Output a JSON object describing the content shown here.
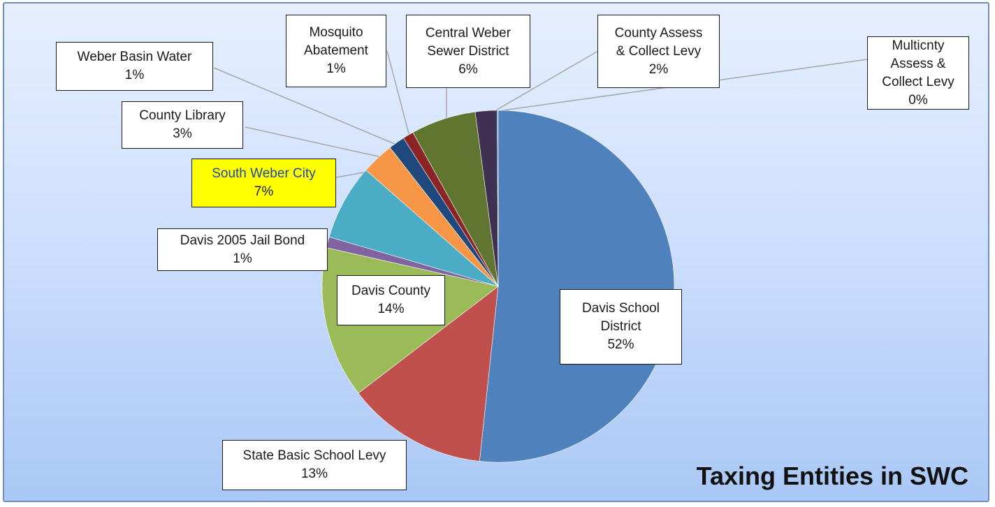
{
  "chart_data": {
    "type": "pie",
    "title": "Taxing Entities in SWC",
    "start_angle_deg": 0,
    "direction": "clockwise",
    "slices": [
      {
        "label": "Davis School District",
        "label_lines": [
          "Davis School",
          "District"
        ],
        "value": 52,
        "pct_label": "52%",
        "color": "#4f81bd"
      },
      {
        "label": "State Basic School Levy",
        "label_lines": [
          "State Basic School Levy"
        ],
        "value": 13,
        "pct_label": "13%",
        "color": "#c0504d"
      },
      {
        "label": "Davis County",
        "label_lines": [
          "Davis County"
        ],
        "value": 14,
        "pct_label": "14%",
        "color": "#9bbb59"
      },
      {
        "label": "Davis 2005 Jail Bond",
        "label_lines": [
          "Davis 2005 Jail Bond"
        ],
        "value": 1,
        "pct_label": "1%",
        "color": "#8064a2"
      },
      {
        "label": "South Weber City",
        "label_lines": [
          "South Weber City"
        ],
        "value": 7,
        "pct_label": "7%",
        "color": "#4bacc6",
        "highlight": true
      },
      {
        "label": "County Library",
        "label_lines": [
          "County Library"
        ],
        "value": 3,
        "pct_label": "3%",
        "color": "#f79646"
      },
      {
        "label": "Weber Basin Water",
        "label_lines": [
          "Weber Basin Water"
        ],
        "value": 1.5,
        "pct_label": "1%",
        "color": "#1f497d"
      },
      {
        "label": "Mosquito Abatement",
        "label_lines": [
          "Mosquito",
          "Abatement"
        ],
        "value": 1,
        "pct_label": "1%",
        "color": "#8b2525"
      },
      {
        "label": "Central Weber Sewer District",
        "label_lines": [
          "Central Weber",
          "Sewer District"
        ],
        "value": 6,
        "pct_label": "6%",
        "color": "#5f7530"
      },
      {
        "label": "County Assess & Collect Levy",
        "label_lines": [
          "County Assess",
          "& Collect Levy"
        ],
        "value": 2,
        "pct_label": "2%",
        "color": "#3f3151"
      },
      {
        "label": "Multicnty Assess & Collect Levy",
        "label_lines": [
          "Multicnty",
          "Assess &",
          "Collect Levy"
        ],
        "value": 0.1,
        "pct_label": "0%",
        "color": "#4a7bb0"
      }
    ]
  }
}
